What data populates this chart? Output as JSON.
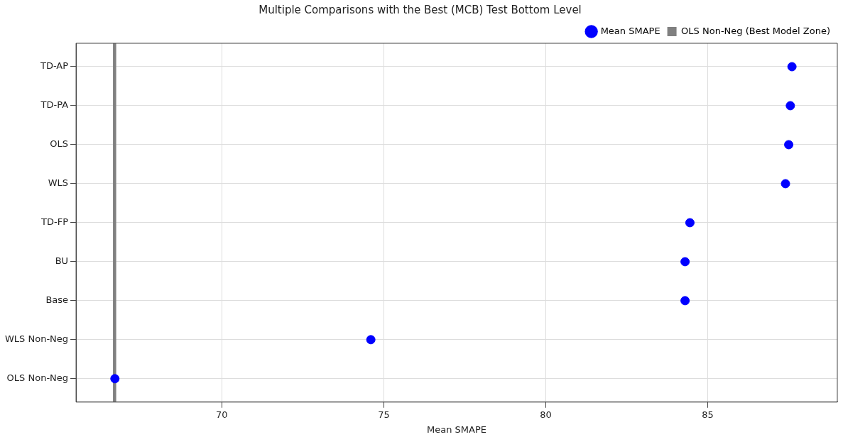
{
  "chart_data": {
    "type": "scatter",
    "orientation": "horizontal",
    "title": "Multiple Comparisons with the Best (MCB) Test Bottom Level",
    "xlabel": "Mean SMAPE",
    "categories": [
      "TD-AP",
      "TD-PA",
      "OLS",
      "WLS",
      "TD-FP",
      "BU",
      "Base",
      "WLS Non-Neg",
      "OLS Non-Neg"
    ],
    "series": [
      {
        "name": "Mean SMAPE",
        "color": "#0000ff",
        "values": [
          87.6,
          87.55,
          87.5,
          87.4,
          84.45,
          84.3,
          84.3,
          74.6,
          66.7
        ]
      }
    ],
    "bands": [
      {
        "axis": "x",
        "from": 66.64,
        "to": 66.74,
        "label": "OLS Non-Neg (Best Model Zone)",
        "color": "#808080"
      }
    ],
    "xlim": [
      65.5,
      89
    ],
    "xticks": [
      70,
      75,
      80,
      85
    ],
    "grid": true,
    "legend": "top right",
    "marker": "circle"
  }
}
